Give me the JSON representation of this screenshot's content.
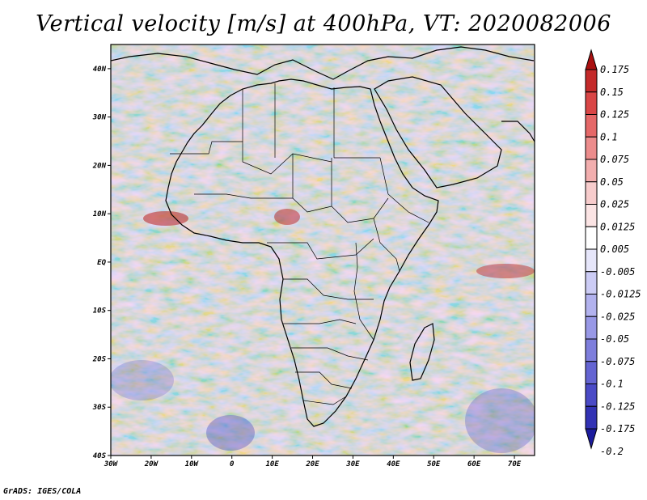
{
  "title": "Vertical velocity [m/s] at 400hPa, VT: 2020082006",
  "credit": "GrADS: IGES/COLA",
  "map": {
    "lat_ticks": [
      "40N",
      "30N",
      "20N",
      "10N",
      "EQ",
      "10S",
      "20S",
      "30S",
      "40S"
    ],
    "lon_ticks": [
      "30W",
      "20W",
      "10W",
      "0",
      "10E",
      "20E",
      "30E",
      "40E",
      "50E",
      "60E",
      "70E"
    ],
    "lat_range": [
      -40,
      45
    ],
    "lon_range": [
      -30,
      75
    ]
  },
  "colorbar": {
    "labels": [
      "0.175",
      "0.15",
      "0.125",
      "0.1",
      "0.075",
      "0.05",
      "0.025",
      "0.0125",
      "0.005",
      "-0.005",
      "-0.0125",
      "-0.025",
      "-0.05",
      "-0.075",
      "-0.1",
      "-0.125",
      "-0.175",
      "-0.2"
    ],
    "colors": [
      "#aa1010",
      "#c42a2a",
      "#d94646",
      "#e56868",
      "#ec8c8c",
      "#f2aeae",
      "#f7cccc",
      "#fbe4e4",
      "#ffffff",
      "#e6e6fa",
      "#ccccf5",
      "#b2b2ee",
      "#9898e6",
      "#7e7edc",
      "#6464d2",
      "#4a4ac6",
      "#3232b4",
      "#1c1c9e"
    ]
  }
}
